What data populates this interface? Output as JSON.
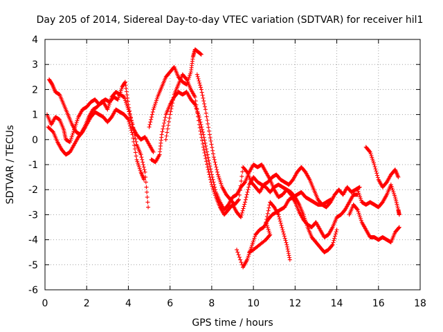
{
  "chart_data": {
    "type": "scatter",
    "title": "Day 205 of 2014, Sidereal Day-to-day VTEC variation (SDTVAR) for receiver hil1",
    "xlabel": "GPS time / hours",
    "ylabel": "SDTVAR / TECUs",
    "xlim": [
      0,
      18
    ],
    "ylim": [
      -6,
      4
    ],
    "xticks": [
      0,
      2,
      4,
      6,
      8,
      10,
      12,
      14,
      16,
      18
    ],
    "yticks": [
      -6,
      -5,
      -4,
      -3,
      -2,
      -1,
      0,
      1,
      2,
      3,
      4
    ],
    "grid": true,
    "marker": "+",
    "color": "#ff0000",
    "series": [
      {
        "name": "trace-a",
        "points": [
          [
            0.1,
            1.0
          ],
          [
            0.3,
            0.6
          ],
          [
            0.5,
            0.9
          ],
          [
            0.7,
            0.8
          ],
          [
            0.9,
            0.4
          ],
          [
            1.0,
            0.0
          ],
          [
            1.2,
            -0.1
          ],
          [
            1.4,
            0.4
          ],
          [
            1.6,
            0.9
          ],
          [
            1.8,
            1.2
          ],
          [
            2.0,
            1.3
          ],
          [
            2.2,
            1.5
          ],
          [
            2.4,
            1.6
          ],
          [
            2.6,
            1.4
          ],
          [
            2.8,
            1.5
          ],
          [
            3.0,
            1.2
          ],
          [
            3.2,
            1.7
          ],
          [
            3.4,
            1.9
          ],
          [
            3.6,
            1.8
          ],
          [
            3.8,
            1.7
          ],
          [
            4.0,
            1.2
          ],
          [
            4.2,
            0.6
          ],
          [
            4.4,
            -0.2
          ],
          [
            4.6,
            -0.6
          ],
          [
            4.8,
            -1.3
          ],
          [
            4.95,
            -2.7
          ]
        ]
      },
      {
        "name": "trace-b",
        "points": [
          [
            0.2,
            2.4
          ],
          [
            0.35,
            2.2
          ],
          [
            0.5,
            1.9
          ],
          [
            0.7,
            1.8
          ],
          [
            0.9,
            1.4
          ],
          [
            1.1,
            1.0
          ],
          [
            1.3,
            0.6
          ],
          [
            1.5,
            0.3
          ],
          [
            1.7,
            0.2
          ],
          [
            1.9,
            0.5
          ],
          [
            2.1,
            0.9
          ],
          [
            2.3,
            1.2
          ],
          [
            2.5,
            1.3
          ],
          [
            2.7,
            1.5
          ],
          [
            2.9,
            1.6
          ],
          [
            3.1,
            1.5
          ],
          [
            3.3,
            1.7
          ],
          [
            3.5,
            1.6
          ],
          [
            3.7,
            2.1
          ],
          [
            3.85,
            2.3
          ],
          [
            4.0,
            1.4
          ],
          [
            4.2,
            0.5
          ],
          [
            4.4,
            0.2
          ],
          [
            4.6,
            0.0
          ],
          [
            4.8,
            0.1
          ],
          [
            5.0,
            -0.2
          ],
          [
            5.2,
            -0.5
          ]
        ]
      },
      {
        "name": "trace-c",
        "points": [
          [
            0.15,
            0.5
          ],
          [
            0.4,
            0.3
          ],
          [
            0.6,
            -0.1
          ],
          [
            0.8,
            -0.4
          ],
          [
            1.0,
            -0.6
          ],
          [
            1.2,
            -0.5
          ],
          [
            1.4,
            -0.2
          ],
          [
            1.6,
            0.1
          ],
          [
            1.8,
            0.3
          ],
          [
            2.0,
            0.6
          ],
          [
            2.2,
            0.9
          ],
          [
            2.4,
            1.1
          ],
          [
            2.6,
            1.0
          ],
          [
            2.8,
            0.9
          ],
          [
            3.0,
            0.7
          ],
          [
            3.2,
            0.9
          ],
          [
            3.4,
            1.2
          ],
          [
            3.6,
            1.1
          ],
          [
            3.8,
            1.0
          ],
          [
            4.0,
            0.8
          ],
          [
            4.2,
            0.2
          ],
          [
            4.4,
            -0.8
          ],
          [
            4.6,
            -1.3
          ],
          [
            4.75,
            -1.6
          ]
        ]
      },
      {
        "name": "trace-d",
        "points": [
          [
            5.0,
            0.5
          ],
          [
            5.2,
            1.2
          ],
          [
            5.4,
            1.7
          ],
          [
            5.6,
            2.1
          ],
          [
            5.8,
            2.5
          ],
          [
            6.0,
            2.7
          ],
          [
            6.2,
            2.9
          ],
          [
            6.4,
            2.5
          ],
          [
            6.6,
            2.3
          ],
          [
            6.8,
            2.2
          ],
          [
            7.0,
            2.7
          ],
          [
            7.1,
            3.3
          ],
          [
            7.2,
            3.6
          ],
          [
            7.35,
            3.5
          ],
          [
            7.5,
            3.4
          ]
        ]
      },
      {
        "name": "trace-e",
        "points": [
          [
            5.1,
            -0.8
          ],
          [
            5.3,
            -0.9
          ],
          [
            5.5,
            -0.6
          ],
          [
            5.6,
            0.2
          ],
          [
            5.8,
            1.0
          ],
          [
            6.0,
            1.4
          ],
          [
            6.2,
            1.7
          ],
          [
            6.4,
            1.9
          ],
          [
            6.6,
            1.8
          ],
          [
            6.8,
            1.9
          ],
          [
            7.0,
            1.6
          ],
          [
            7.2,
            1.4
          ],
          [
            7.4,
            0.9
          ],
          [
            7.6,
            0.2
          ],
          [
            7.8,
            -0.6
          ],
          [
            8.0,
            -1.4
          ],
          [
            8.2,
            -2.1
          ],
          [
            8.4,
            -2.5
          ],
          [
            8.6,
            -2.8
          ],
          [
            8.8,
            -2.6
          ],
          [
            9.0,
            -2.3
          ],
          [
            9.2,
            -2.2
          ],
          [
            9.4,
            -1.9
          ],
          [
            9.6,
            -1.7
          ],
          [
            9.8,
            -1.3
          ],
          [
            10.0,
            -1.0
          ],
          [
            10.2,
            -1.1
          ],
          [
            10.4,
            -1.0
          ],
          [
            10.6,
            -1.3
          ],
          [
            10.8,
            -1.6
          ],
          [
            11.0,
            -2.0
          ],
          [
            11.2,
            -2.3
          ],
          [
            11.4,
            -2.2
          ],
          [
            11.6,
            -2.0
          ],
          [
            11.8,
            -2.1
          ],
          [
            12.0,
            -2.3
          ],
          [
            12.2,
            -2.6
          ],
          [
            12.4,
            -3.0
          ],
          [
            12.6,
            -3.5
          ],
          [
            12.8,
            -3.9
          ],
          [
            13.0,
            -4.1
          ],
          [
            13.2,
            -4.3
          ],
          [
            13.4,
            -4.5
          ],
          [
            13.6,
            -4.4
          ],
          [
            13.8,
            -4.2
          ],
          [
            14.0,
            -3.6
          ]
        ]
      },
      {
        "name": "trace-f",
        "points": [
          [
            5.8,
            0.0
          ],
          [
            6.0,
            1.0
          ],
          [
            6.2,
            1.8
          ],
          [
            6.4,
            2.2
          ],
          [
            6.6,
            2.6
          ],
          [
            6.8,
            2.4
          ],
          [
            7.0,
            2.0
          ],
          [
            7.2,
            1.7
          ],
          [
            7.4,
            0.6
          ],
          [
            7.6,
            -0.3
          ],
          [
            7.8,
            -1.1
          ],
          [
            8.0,
            -1.8
          ],
          [
            8.2,
            -2.3
          ],
          [
            8.4,
            -2.7
          ],
          [
            8.6,
            -3.0
          ],
          [
            8.8,
            -2.8
          ],
          [
            9.0,
            -2.6
          ],
          [
            9.2,
            -2.9
          ],
          [
            9.4,
            -3.1
          ],
          [
            9.6,
            -2.5
          ],
          [
            9.8,
            -1.8
          ],
          [
            10.0,
            -1.5
          ],
          [
            10.2,
            -1.7
          ],
          [
            10.4,
            -1.8
          ],
          [
            10.6,
            -1.9
          ],
          [
            10.8,
            -2.1
          ],
          [
            11.0,
            -1.9
          ],
          [
            11.2,
            -1.8
          ],
          [
            11.4,
            -1.9
          ],
          [
            11.6,
            -2.0
          ],
          [
            11.8,
            -2.2
          ],
          [
            12.0,
            -2.5
          ],
          [
            12.2,
            -2.9
          ],
          [
            12.4,
            -3.2
          ],
          [
            12.6,
            -3.4
          ],
          [
            12.8,
            -3.5
          ],
          [
            13.0,
            -3.3
          ],
          [
            13.2,
            -3.6
          ],
          [
            13.4,
            -3.9
          ],
          [
            13.6,
            -3.8
          ],
          [
            13.8,
            -3.5
          ],
          [
            14.0,
            -3.1
          ],
          [
            14.2,
            -3.0
          ],
          [
            14.4,
            -2.8
          ],
          [
            14.6,
            -2.5
          ],
          [
            14.8,
            -2.2
          ],
          [
            15.0,
            -2.2
          ]
        ]
      },
      {
        "name": "trace-g",
        "points": [
          [
            7.3,
            2.6
          ],
          [
            7.5,
            2.0
          ],
          [
            7.7,
            1.2
          ],
          [
            7.9,
            0.2
          ],
          [
            8.1,
            -0.7
          ],
          [
            8.3,
            -1.4
          ],
          [
            8.5,
            -1.9
          ],
          [
            8.7,
            -2.2
          ],
          [
            8.9,
            -2.4
          ],
          [
            9.1,
            -2.6
          ],
          [
            9.3,
            -2.4
          ],
          [
            9.5,
            -1.1
          ],
          [
            9.7,
            -1.3
          ],
          [
            9.9,
            -1.7
          ],
          [
            10.1,
            -1.9
          ],
          [
            10.3,
            -2.1
          ],
          [
            10.5,
            -1.8
          ],
          [
            10.7,
            -1.7
          ],
          [
            10.9,
            -1.5
          ],
          [
            11.1,
            -1.4
          ],
          [
            11.3,
            -1.6
          ],
          [
            11.5,
            -1.7
          ],
          [
            11.7,
            -1.8
          ],
          [
            11.9,
            -1.6
          ],
          [
            12.1,
            -1.3
          ],
          [
            12.3,
            -1.1
          ],
          [
            12.5,
            -1.3
          ],
          [
            12.7,
            -1.6
          ],
          [
            12.9,
            -2.0
          ],
          [
            13.1,
            -2.4
          ],
          [
            13.3,
            -2.6
          ],
          [
            13.5,
            -2.7
          ],
          [
            13.7,
            -2.5
          ],
          [
            13.9,
            -2.2
          ],
          [
            14.1,
            -2.0
          ],
          [
            14.3,
            -2.2
          ],
          [
            14.5,
            -1.9
          ],
          [
            14.7,
            -2.1
          ],
          [
            14.9,
            -2.0
          ],
          [
            15.1,
            -1.9
          ]
        ]
      },
      {
        "name": "trace-h",
        "points": [
          [
            9.2,
            -4.4
          ],
          [
            9.5,
            -5.1
          ],
          [
            9.7,
            -4.8
          ],
          [
            9.9,
            -4.3
          ],
          [
            10.1,
            -3.8
          ],
          [
            10.3,
            -3.6
          ],
          [
            10.5,
            -3.5
          ],
          [
            10.7,
            -3.2
          ],
          [
            10.9,
            -3.0
          ],
          [
            11.1,
            -2.9
          ],
          [
            11.3,
            -2.8
          ],
          [
            11.5,
            -2.7
          ],
          [
            11.7,
            -2.4
          ],
          [
            11.9,
            -2.3
          ],
          [
            12.1,
            -2.2
          ],
          [
            12.3,
            -2.1
          ],
          [
            12.5,
            -2.3
          ],
          [
            12.7,
            -2.4
          ],
          [
            12.9,
            -2.5
          ],
          [
            13.1,
            -2.6
          ],
          [
            13.3,
            -2.6
          ],
          [
            13.5,
            -2.5
          ],
          [
            13.7,
            -2.4
          ]
        ]
      },
      {
        "name": "trace-i",
        "points": [
          [
            9.8,
            -4.5
          ],
          [
            10.0,
            -4.4
          ],
          [
            10.3,
            -4.2
          ],
          [
            10.6,
            -4.0
          ],
          [
            10.8,
            -3.8
          ],
          [
            10.6,
            -3.3
          ],
          [
            10.8,
            -2.5
          ],
          [
            11.0,
            -2.7
          ],
          [
            11.2,
            -3.0
          ],
          [
            11.4,
            -3.6
          ],
          [
            11.6,
            -4.2
          ],
          [
            11.75,
            -4.8
          ]
        ]
      },
      {
        "name": "trace-j",
        "points": [
          [
            15.4,
            -0.3
          ],
          [
            15.6,
            -0.5
          ],
          [
            15.8,
            -1.0
          ],
          [
            16.0,
            -1.6
          ],
          [
            16.2,
            -1.9
          ],
          [
            16.4,
            -1.7
          ],
          [
            16.6,
            -1.4
          ],
          [
            16.8,
            -1.2
          ],
          [
            16.95,
            -1.5
          ]
        ]
      },
      {
        "name": "trace-k",
        "points": [
          [
            15.0,
            -2.0
          ],
          [
            15.2,
            -2.5
          ],
          [
            15.4,
            -2.6
          ],
          [
            15.6,
            -2.5
          ],
          [
            15.8,
            -2.6
          ],
          [
            16.0,
            -2.7
          ],
          [
            16.2,
            -2.5
          ],
          [
            16.4,
            -2.2
          ],
          [
            16.6,
            -1.8
          ],
          [
            16.8,
            -2.3
          ],
          [
            16.95,
            -2.8
          ],
          [
            17.0,
            -3.0
          ]
        ]
      },
      {
        "name": "trace-l",
        "points": [
          [
            14.6,
            -3.0
          ],
          [
            14.8,
            -2.6
          ],
          [
            15.0,
            -2.8
          ],
          [
            15.2,
            -3.3
          ],
          [
            15.4,
            -3.6
          ],
          [
            15.6,
            -3.9
          ],
          [
            15.8,
            -3.9
          ],
          [
            16.0,
            -4.0
          ],
          [
            16.2,
            -3.9
          ],
          [
            16.4,
            -4.0
          ],
          [
            16.6,
            -4.1
          ],
          [
            16.8,
            -3.7
          ],
          [
            17.0,
            -3.5
          ]
        ]
      }
    ]
  }
}
